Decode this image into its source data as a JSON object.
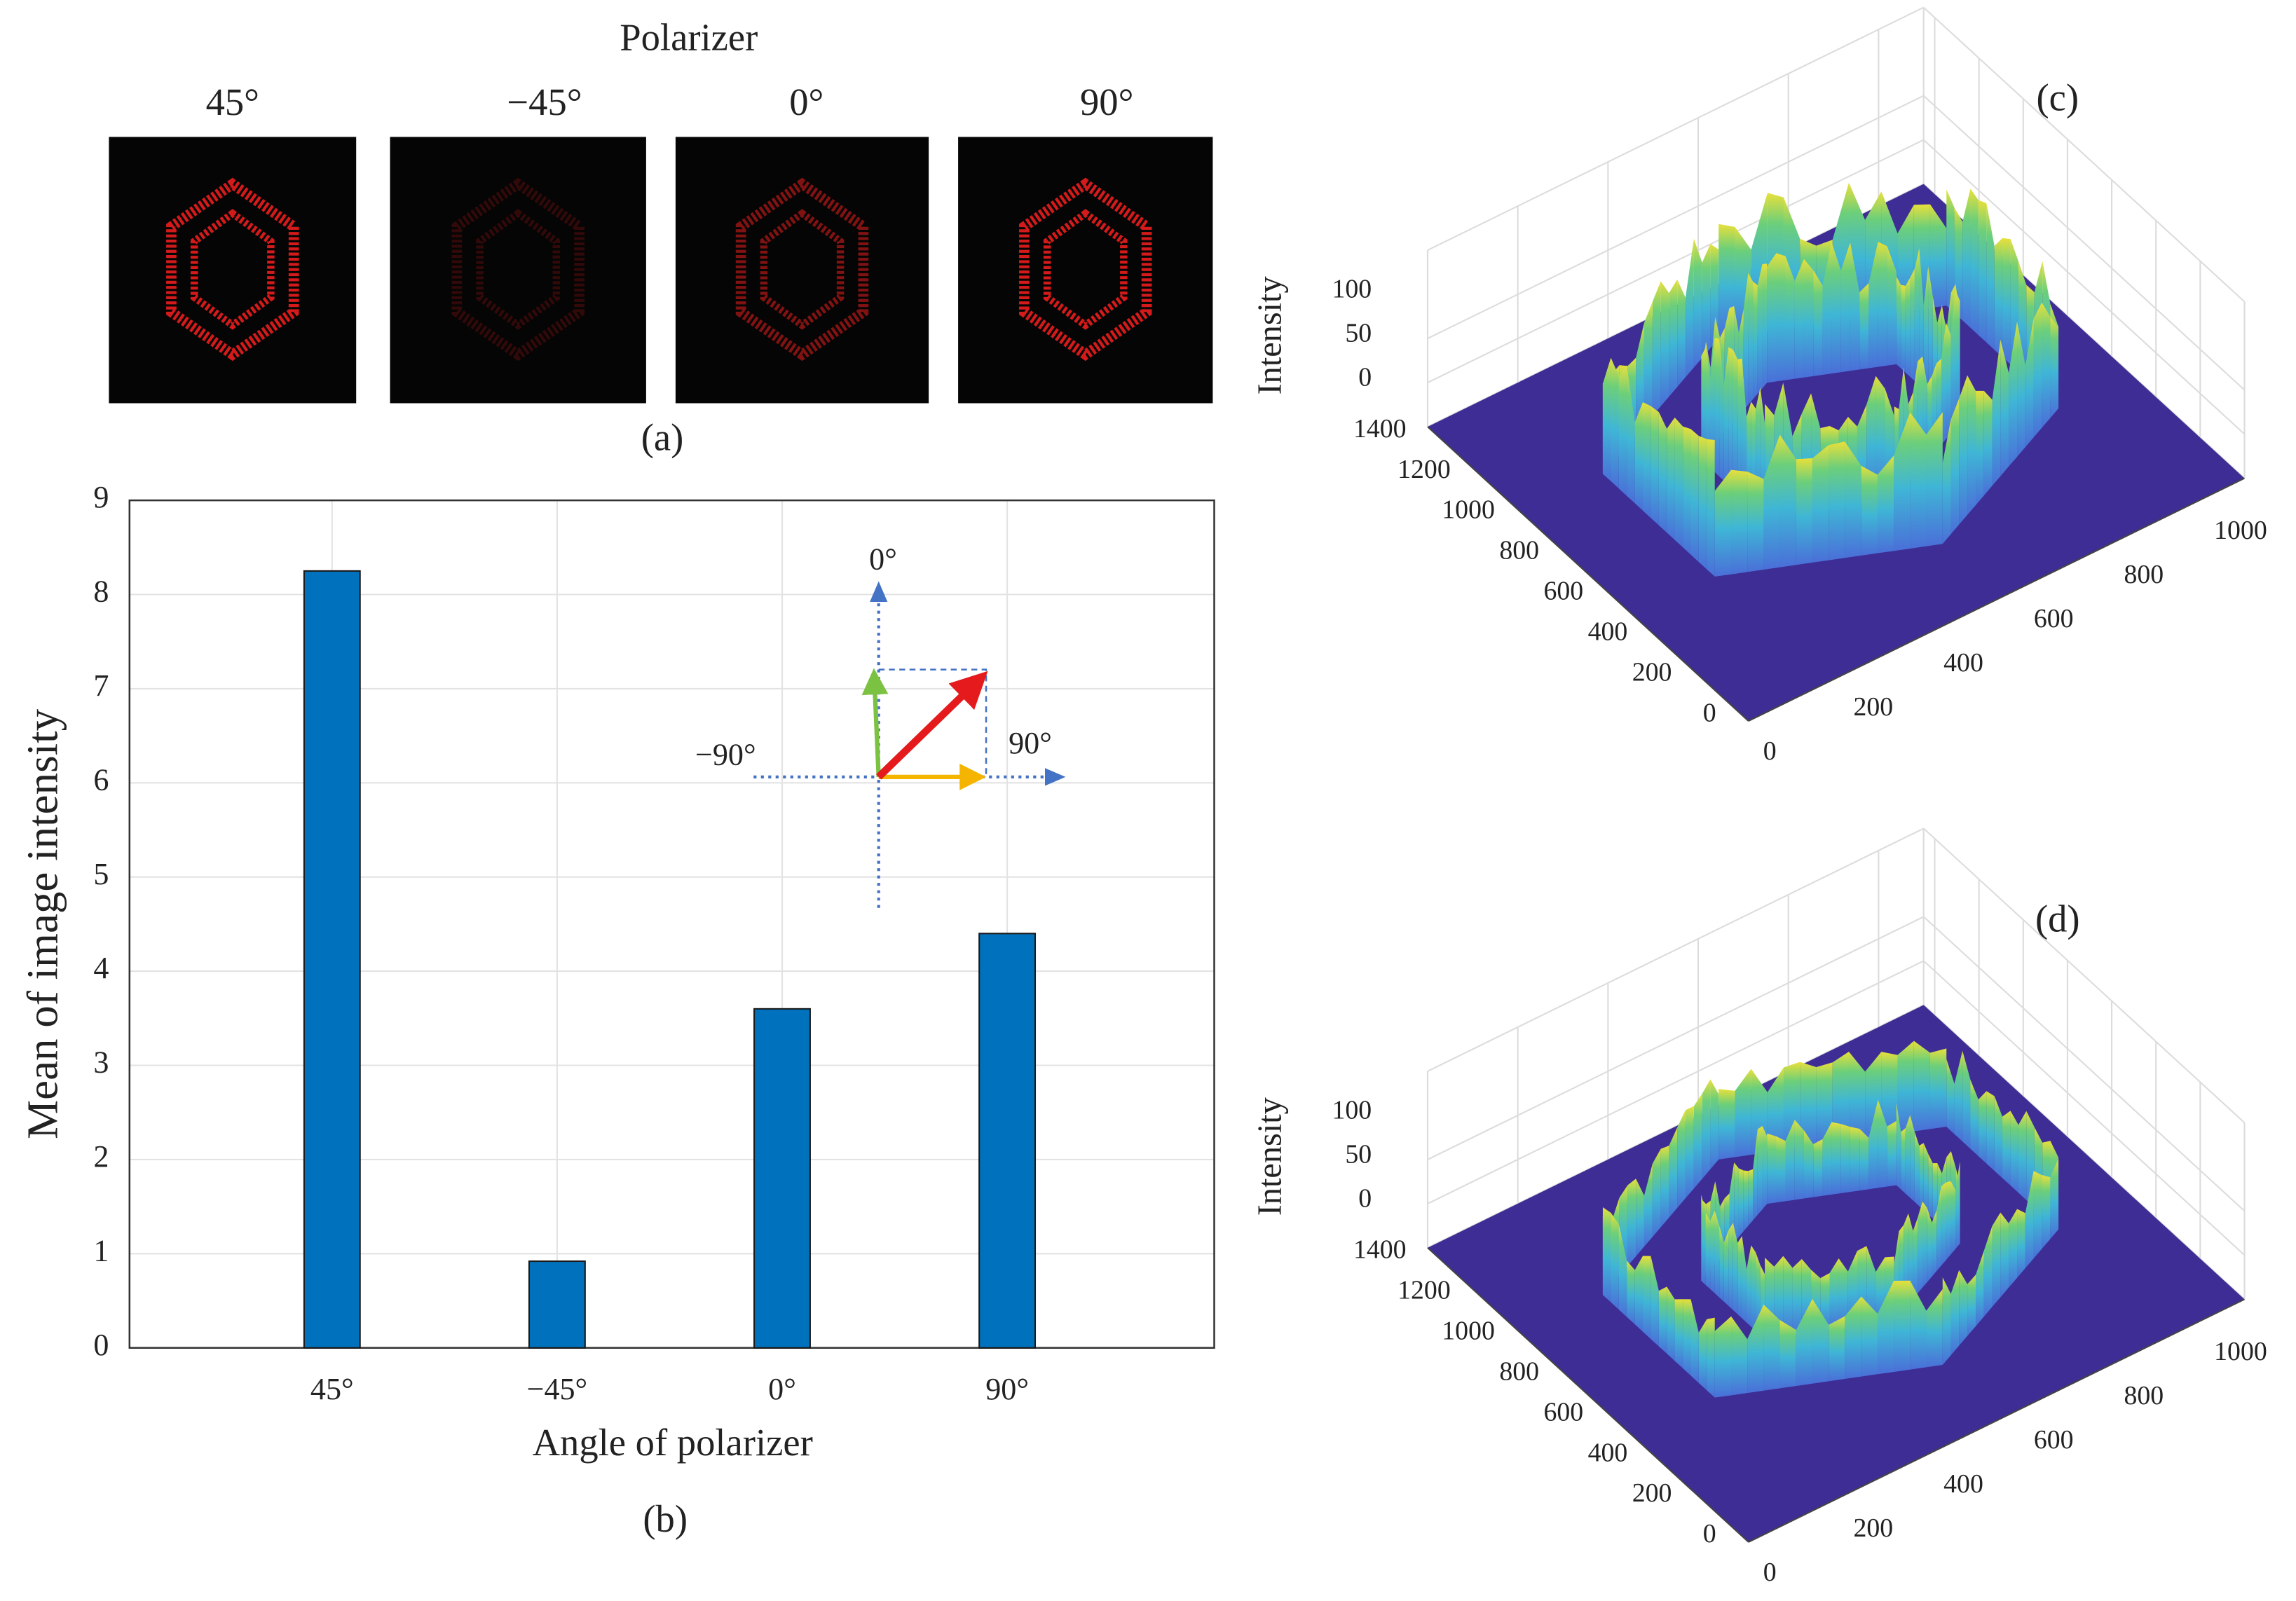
{
  "polarizer_images": {
    "title": "Polarizer",
    "angles": [
      "45°",
      "−45°",
      "0°",
      "90°"
    ],
    "caption": "(a)"
  },
  "chart_data": [
    {
      "type": "bar",
      "categories": [
        "45°",
        "−45°",
        "0°",
        "90°"
      ],
      "values": [
        8.25,
        0.92,
        3.6,
        4.4
      ],
      "color": "#0072bd",
      "ylim": [
        0,
        9
      ],
      "yticks": [
        0,
        1,
        2,
        3,
        4,
        5,
        6,
        7,
        8,
        9
      ],
      "grid": true,
      "xlabel": "Angle of polarizer",
      "ylabel": "Mean of image intensity",
      "caption": "(b)",
      "inset_labels": [
        "0°",
        "−90°",
        "90°"
      ]
    },
    {
      "type": "surface",
      "label": "(c)",
      "zlabel": "Intensity",
      "xlim": [
        0,
        1100
      ],
      "ylim": [
        0,
        1450
      ],
      "zlim": [
        0,
        200
      ],
      "xticks": [
        0,
        200,
        400,
        600,
        800,
        1000
      ],
      "yticks": [
        0,
        200,
        400,
        600,
        800,
        1000,
        1200,
        1400
      ],
      "zticks": [
        0,
        50,
        100
      ]
    },
    {
      "type": "surface",
      "label": "(d)",
      "zlabel": "Intensity",
      "xlim": [
        0,
        1100
      ],
      "ylim": [
        0,
        1450
      ],
      "zlim": [
        0,
        200
      ],
      "xticks": [
        0,
        200,
        400,
        600,
        800,
        1000
      ],
      "yticks": [
        0,
        200,
        400,
        600,
        800,
        1000,
        1200,
        1400
      ],
      "zticks": [
        0,
        50,
        100
      ]
    }
  ]
}
